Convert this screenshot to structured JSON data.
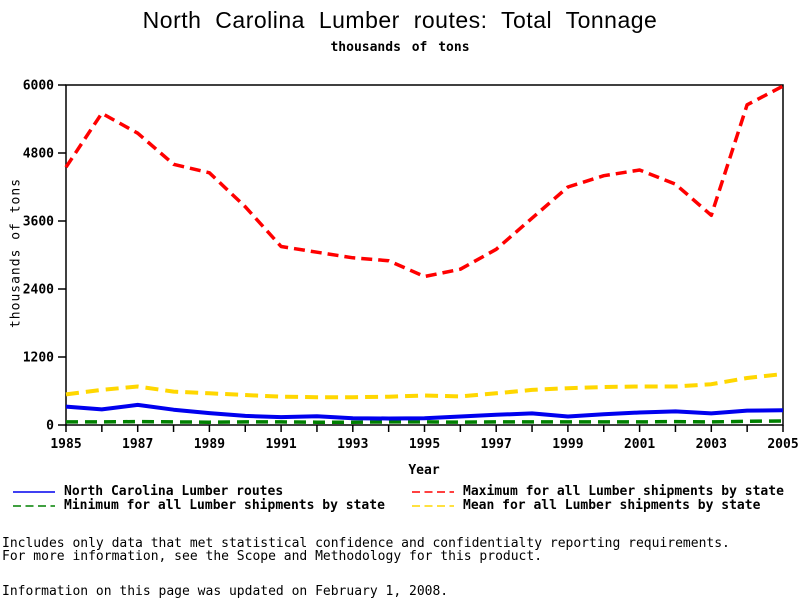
{
  "chart": {
    "title": "North Carolina Lumber routes: Total Tonnage",
    "subtitle": "thousands of tons",
    "xlabel": "Year",
    "ylabel": "thousands of tons"
  },
  "footnotes": {
    "line1": "Includes only data that met statistical confidence and confidentialty reporting requirements.",
    "line2": "For more information, see the Scope and Methodology for this product.",
    "line3": "Information on this page was updated on February 1, 2008."
  },
  "chart_data": {
    "type": "line",
    "title": "North Carolina Lumber routes: Total Tonnage",
    "subtitle": "thousands of tons",
    "xlabel": "Year",
    "ylabel": "thousands of tons",
    "xlim": [
      1985,
      2005
    ],
    "ylim": [
      0,
      6000
    ],
    "grid": false,
    "legend_position": "bottom-two-columns",
    "x": [
      1985,
      1986,
      1987,
      1988,
      1989,
      1990,
      1991,
      1992,
      1993,
      1994,
      1995,
      1996,
      1997,
      1998,
      1999,
      2000,
      2001,
      2002,
      2003,
      2004,
      2005
    ],
    "x_tick_labels": [
      "1985",
      "1987",
      "1989",
      "1991",
      "1993",
      "1995",
      "1997",
      "1999",
      "2001",
      "2003",
      "2005"
    ],
    "y_ticks": [
      "0",
      "1200",
      "2400",
      "3600",
      "4800",
      "6000"
    ],
    "series": [
      {
        "name": "North Carolina Lumber routes",
        "color": "#0000ee",
        "style": "solid",
        "width": 4,
        "values": [
          325,
          275,
          355,
          270,
          210,
          160,
          140,
          155,
          120,
          115,
          120,
          150,
          180,
          205,
          150,
          190,
          220,
          240,
          205,
          255,
          260
        ]
      },
      {
        "name": "Maximum for all Lumber shipments by state",
        "color": "#ff0000",
        "style": "dashed",
        "dasharray": "11 6",
        "width": 3.5,
        "values": [
          4550,
          5500,
          5150,
          4600,
          4450,
          3850,
          3150,
          3050,
          2950,
          2900,
          2620,
          2750,
          3100,
          3650,
          4200,
          4400,
          4500,
          4250,
          3700,
          5650,
          5980
        ]
      },
      {
        "name": "Minimum for all Lumber shipments by state",
        "color": "#008000",
        "style": "dashed",
        "dasharray": "12 7",
        "width": 3.5,
        "values": [
          55,
          55,
          60,
          55,
          50,
          55,
          55,
          50,
          50,
          55,
          55,
          50,
          55,
          55,
          55,
          55,
          55,
          60,
          55,
          65,
          70
        ]
      },
      {
        "name": "Mean for all Lumber shipments by state",
        "color": "#ffd700",
        "style": "dashed",
        "dasharray": "13 7",
        "width": 4,
        "values": [
          540,
          620,
          680,
          590,
          560,
          530,
          500,
          490,
          490,
          500,
          520,
          505,
          560,
          620,
          650,
          670,
          680,
          680,
          720,
          830,
          900
        ]
      }
    ]
  }
}
